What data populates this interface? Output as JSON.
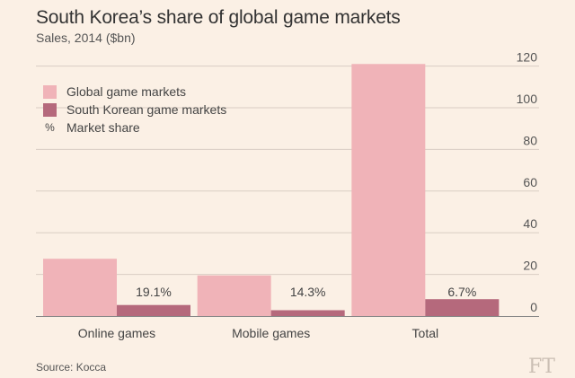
{
  "header": {
    "title": "South Korea’s share of global game markets",
    "subtitle": "Sales, 2014 ($bn)"
  },
  "legend": {
    "items": [
      {
        "label": "Global game markets",
        "color": "#f0b3b8"
      },
      {
        "label": "South Korean game markets",
        "color": "#b5697c"
      },
      {
        "label": "Market share",
        "symbol": "%"
      }
    ]
  },
  "footer": {
    "source": "Source: Kocca",
    "logo": "FT"
  },
  "colors": {
    "global": "#f0b3b8",
    "korea": "#b5697c",
    "grid": "#d9cdc3",
    "background": "#fbf0e5"
  },
  "chart_data": {
    "type": "bar",
    "title": "South Korea’s share of global game markets",
    "subtitle": "Sales, 2014 ($bn)",
    "categories": [
      "Online games",
      "Mobile games",
      "Total"
    ],
    "series": [
      {
        "name": "Global game markets",
        "values": [
          27.5,
          19.5,
          121
        ]
      },
      {
        "name": "South Korean game markets",
        "values": [
          5.3,
          2.8,
          8.1
        ]
      }
    ],
    "market_share_labels": [
      "19.1%",
      "14.3%",
      "6.7%"
    ],
    "ylim": [
      0,
      125
    ],
    "yticks": [
      0,
      20,
      40,
      60,
      80,
      100,
      120
    ],
    "xlabel": "",
    "ylabel": "",
    "grid": true,
    "legend_position": "top-left"
  }
}
